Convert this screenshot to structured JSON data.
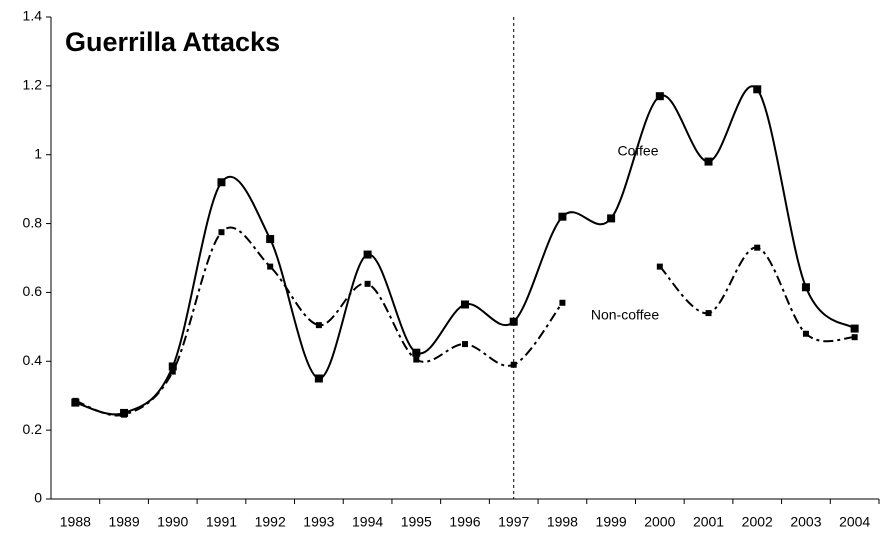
{
  "chart_data": {
    "type": "line",
    "title": "Guerrilla Attacks",
    "categories": [
      "1988",
      "1989",
      "1990",
      "1991",
      "1992",
      "1993",
      "1994",
      "1995",
      "1996",
      "1997",
      "1998",
      "1999",
      "2000",
      "2001",
      "2002",
      "2003",
      "2004"
    ],
    "series": [
      {
        "name": "Coffee",
        "color": "#000000",
        "dash": "solid",
        "values": [
          0.28,
          0.25,
          0.385,
          0.92,
          0.755,
          0.35,
          0.71,
          0.425,
          0.565,
          0.515,
          0.82,
          0.815,
          1.17,
          0.98,
          1.19,
          0.615,
          0.495
        ]
      },
      {
        "name": "Non-coffee",
        "color": "#000000",
        "dash": "dashdot",
        "values": [
          0.285,
          0.245,
          0.37,
          0.775,
          0.675,
          0.505,
          0.625,
          0.405,
          0.45,
          0.39,
          0.57,
          null,
          0.675,
          0.54,
          0.73,
          0.48,
          0.47
        ]
      }
    ],
    "ylim": [
      0,
      1.4
    ],
    "yticks": [
      0,
      0.2,
      0.4,
      0.6,
      0.8,
      1,
      1.2,
      1.4
    ],
    "divider_category": "1997",
    "smooth": true,
    "grid": false
  }
}
